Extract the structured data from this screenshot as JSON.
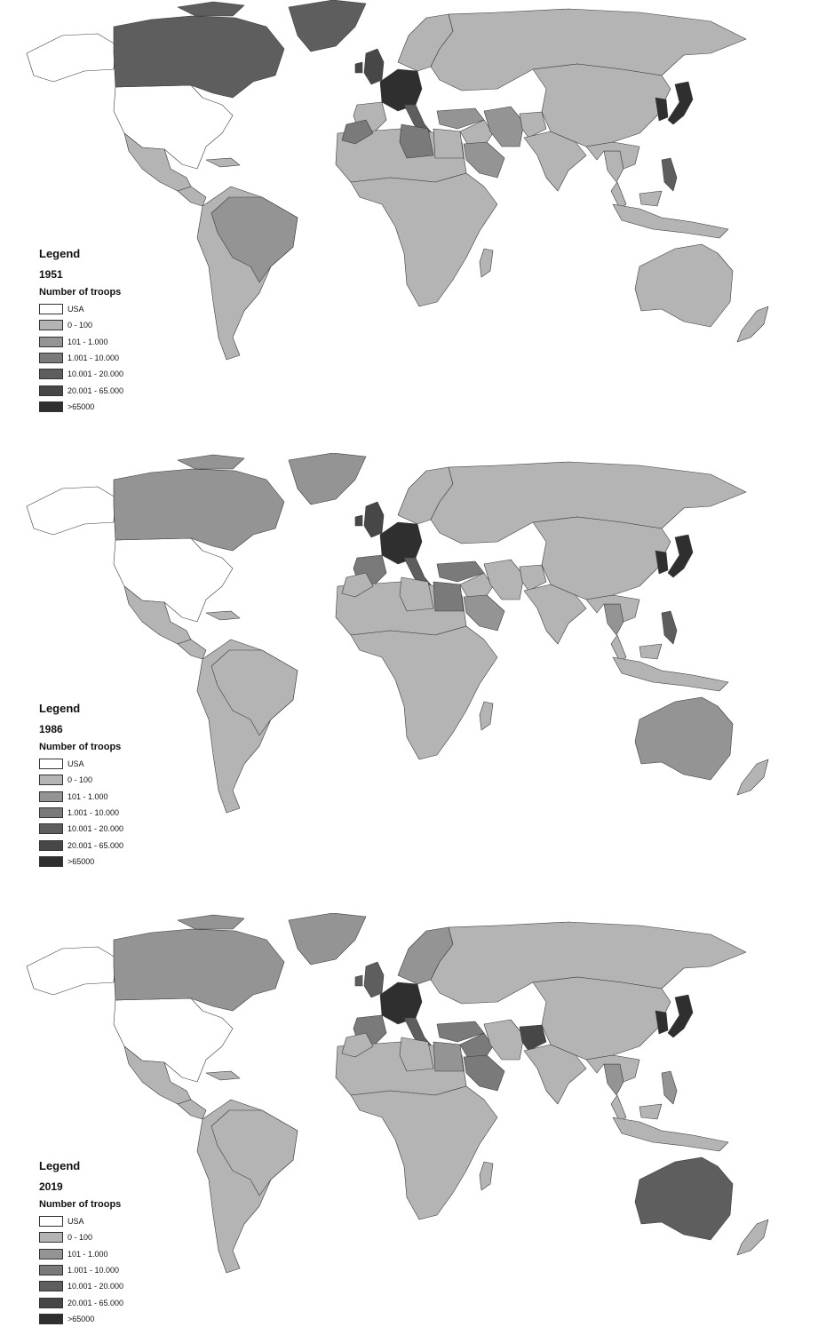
{
  "legend_heading": "Legend",
  "legend_subtitle": "Number of troops",
  "classes": [
    {
      "label": "USA",
      "color": "#ffffff"
    },
    {
      "label": "0 - 100",
      "color": "#b4b4b4"
    },
    {
      "label": "101 - 1.000",
      "color": "#949494"
    },
    {
      "label": "1.001 - 10.000",
      "color": "#7a7a7a"
    },
    {
      "label": "10.001 - 20.000",
      "color": "#5e5e5e"
    },
    {
      "label": "20.001 - 65.000",
      "color": "#474747"
    },
    {
      "label": ">65000",
      "color": "#2f2f2f"
    }
  ],
  "maps": [
    {
      "year": "1951",
      "region_class": {
        "usa": 0,
        "canada": 4,
        "greenland": 4,
        "mexico": 1,
        "central_america": 1,
        "south_america": 1,
        "brazil": 2,
        "uk": 5,
        "western_europe": 6,
        "scandinavia": 1,
        "russia": 1,
        "iberia": 1,
        "italy": 4,
        "north_africa": 1,
        "libya": 3,
        "morocco": 3,
        "africa": 1,
        "middle_east": 1,
        "saudi_arabia": 2,
        "iran": 2,
        "south_asia": 1,
        "china": 1,
        "korea": 6,
        "japan": 6,
        "southeast_asia": 1,
        "philippines": 4,
        "indonesia": 1,
        "australia": 1,
        "new_zealand": 1,
        "madagascar": 1,
        "turkey": 2,
        "egypt": 1,
        "afghanistan": 1,
        "thailand": 1
      }
    },
    {
      "year": "1986",
      "region_class": {
        "usa": 0,
        "canada": 2,
        "greenland": 2,
        "mexico": 1,
        "central_america": 1,
        "south_america": 1,
        "brazil": 1,
        "uk": 5,
        "western_europe": 6,
        "scandinavia": 1,
        "russia": 1,
        "iberia": 3,
        "italy": 4,
        "north_africa": 1,
        "libya": 1,
        "morocco": 1,
        "africa": 1,
        "middle_east": 1,
        "saudi_arabia": 2,
        "iran": 1,
        "south_asia": 1,
        "china": 1,
        "korea": 6,
        "japan": 6,
        "southeast_asia": 1,
        "philippines": 4,
        "indonesia": 1,
        "australia": 2,
        "new_zealand": 1,
        "madagascar": 1,
        "turkey": 3,
        "egypt": 3,
        "afghanistan": 1,
        "thailand": 2
      }
    },
    {
      "year": "2019",
      "region_class": {
        "usa": 0,
        "canada": 2,
        "greenland": 2,
        "mexico": 1,
        "central_america": 1,
        "south_america": 1,
        "brazil": 1,
        "uk": 4,
        "western_europe": 6,
        "scandinavia": 2,
        "russia": 1,
        "iberia": 3,
        "italy": 4,
        "north_africa": 1,
        "libya": 1,
        "morocco": 1,
        "africa": 1,
        "middle_east": 3,
        "saudi_arabia": 3,
        "iran": 1,
        "south_asia": 1,
        "china": 1,
        "korea": 6,
        "japan": 6,
        "southeast_asia": 1,
        "philippines": 2,
        "indonesia": 1,
        "australia": 4,
        "new_zealand": 1,
        "madagascar": 1,
        "turkey": 3,
        "egypt": 2,
        "afghanistan": 5,
        "thailand": 2
      }
    }
  ]
}
